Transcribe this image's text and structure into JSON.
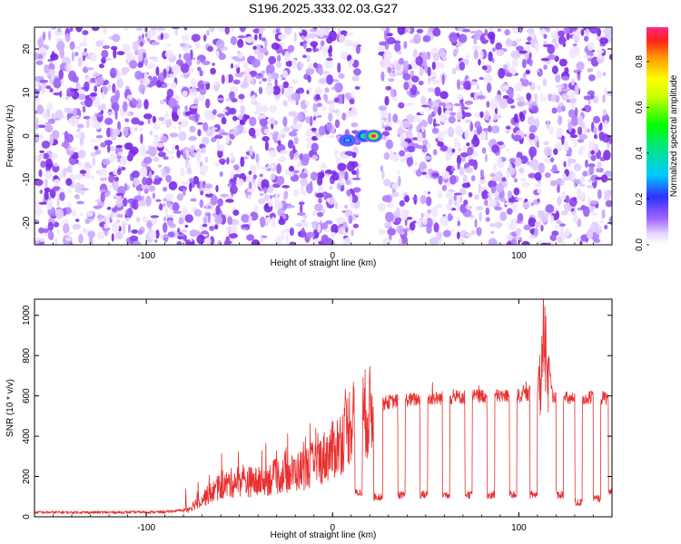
{
  "title": "S196.2025.333.02.03.G27",
  "chart_data": [
    {
      "type": "heatmap",
      "name": "spectrogram",
      "xlabel": "Height of straight line (km)",
      "ylabel": "Frequency (Hz)",
      "xlim": [
        -160,
        150
      ],
      "ylim": [
        -25,
        25
      ],
      "xticks": [
        -100,
        0,
        100
      ],
      "yticks": [
        -20,
        -10,
        0,
        10,
        20
      ],
      "colorbar": {
        "label": "Normalized spectral amplitude",
        "range": [
          0,
          0.95
        ],
        "ticks": [
          0.0,
          0.2,
          0.4,
          0.6,
          0.8
        ]
      },
      "blank_band_x": [
        15,
        25
      ],
      "peaks": [
        {
          "x": 8,
          "y": -1,
          "amplitude": 0.3
        },
        {
          "x": 17,
          "y": 0,
          "amplitude": 0.45
        },
        {
          "x": 22,
          "y": 0,
          "amplitude": 0.95
        }
      ]
    },
    {
      "type": "line",
      "name": "snr",
      "xlabel": "Height of straight line (km)",
      "ylabel": "SNR (10 * v/v)",
      "xlim": [
        -160,
        150
      ],
      "ylim": [
        0,
        1080
      ],
      "xticks": [
        -100,
        0,
        100
      ],
      "yticks": [
        0,
        200,
        400,
        600,
        800,
        1000
      ],
      "color": "#e83030",
      "series_points": [
        [
          -160,
          22
        ],
        [
          -120,
          22
        ],
        [
          -90,
          24
        ],
        [
          -78,
          35
        ],
        [
          -70,
          90
        ],
        [
          -60,
          150
        ],
        [
          -50,
          180
        ],
        [
          -40,
          170
        ],
        [
          -30,
          200
        ],
        [
          -20,
          220
        ],
        [
          -10,
          260
        ],
        [
          0,
          330
        ],
        [
          5,
          380
        ],
        [
          10,
          480
        ],
        [
          15,
          500
        ],
        [
          20,
          520
        ],
        [
          25,
          550
        ],
        [
          30,
          570
        ],
        [
          40,
          580
        ],
        [
          60,
          590
        ],
        [
          80,
          600
        ],
        [
          100,
          600
        ],
        [
          110,
          620
        ],
        [
          113,
          1060
        ],
        [
          118,
          600
        ],
        [
          130,
          580
        ],
        [
          140,
          590
        ],
        [
          150,
          590
        ]
      ],
      "dropouts": [
        {
          "from": 12,
          "to": 16,
          "level": 120
        },
        {
          "from": 22,
          "to": 27,
          "level": 100
        },
        {
          "from": 35,
          "to": 39,
          "level": 110
        },
        {
          "from": 47,
          "to": 51,
          "level": 110
        },
        {
          "from": 59,
          "to": 63,
          "level": 110
        },
        {
          "from": 71,
          "to": 75,
          "level": 110
        },
        {
          "from": 83,
          "to": 87,
          "level": 110
        },
        {
          "from": 95,
          "to": 99,
          "level": 110
        },
        {
          "from": 106,
          "to": 110,
          "level": 110
        },
        {
          "from": 120,
          "to": 124,
          "level": 110
        },
        {
          "from": 130,
          "to": 134,
          "level": 70
        },
        {
          "from": 140,
          "to": 144,
          "level": 90
        },
        {
          "from": 148,
          "to": 150,
          "level": 120
        }
      ]
    }
  ]
}
